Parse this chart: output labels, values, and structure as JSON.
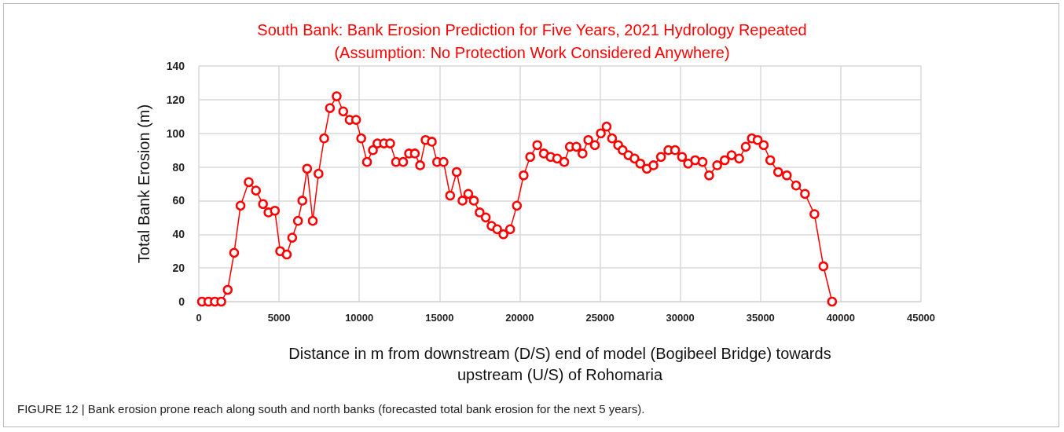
{
  "chart_data": {
    "type": "line",
    "title": "South Bank: Bank Erosion Prediction for Five Years, 2021 Hydrology Repeated\n(Assumption: No Protection Work Considered Anywhere)",
    "xlabel": "Distance in m from downstream (D/S) end of model (Bogibeel Bridge) towards\nupstream (U/S) of Rohomaria",
    "ylabel": "Total Bank Erosion (m)",
    "annotations": [
      "FIGURE 12 | Bank erosion prone reach along south and north banks (forecasted total bank erosion for the next 5 years)."
    ],
    "series": [
      {
        "color": "#ff0000",
        "x": [
          200,
          600,
          1000,
          1400,
          1800,
          2200,
          2600,
          3110,
          3560,
          4000,
          4340,
          4740,
          5070,
          5480,
          5820,
          6180,
          6450,
          6750,
          7100,
          7460,
          7810,
          8170,
          8590,
          9000,
          9400,
          9800,
          10120,
          10480,
          10850,
          11130,
          11540,
          11920,
          12290,
          12730,
          13100,
          13460,
          13790,
          14130,
          14520,
          14850,
          15250,
          15660,
          16070,
          16430,
          16790,
          17140,
          17500,
          17880,
          18240,
          18590,
          18980,
          19400,
          19820,
          20240,
          20650,
          21090,
          21500,
          21920,
          22330,
          22770,
          23120,
          23530,
          23910,
          24270,
          24680,
          25050,
          25410,
          25750,
          26130,
          26410,
          26770,
          27150,
          27510,
          27920,
          28330,
          28800,
          29260,
          29680,
          30110,
          30490,
          30930,
          31390,
          31800,
          32300,
          32770,
          33200,
          33670,
          34080,
          34460,
          34820,
          35200,
          35610,
          36100,
          36640,
          37220,
          37770,
          38360,
          38920,
          39460
        ],
        "values": [
          0,
          0,
          0,
          0,
          7,
          29,
          57,
          71,
          66,
          58,
          53,
          54,
          30,
          28,
          38,
          48,
          60,
          79,
          48,
          76,
          97,
          115,
          122,
          113,
          108,
          108,
          97,
          83,
          90,
          94,
          94,
          94,
          83,
          83,
          88,
          88,
          81,
          96,
          95,
          83,
          83,
          63,
          77,
          60,
          64,
          60,
          53,
          50,
          45,
          43,
          40,
          43,
          57,
          75,
          86,
          93,
          88,
          86,
          85,
          83,
          92,
          92,
          88,
          96,
          93,
          100,
          104,
          97,
          93,
          90,
          87,
          85,
          82,
          79,
          81,
          86,
          90,
          90,
          86,
          82,
          84,
          83,
          75,
          81,
          84,
          87,
          85,
          92,
          97,
          96,
          93,
          84,
          77,
          75,
          69,
          64,
          52,
          21,
          0
        ]
      }
    ],
    "xlim": [
      0,
      45000
    ],
    "xticks": [
      0,
      5000,
      10000,
      15000,
      20000,
      25000,
      30000,
      35000,
      40000,
      45000
    ],
    "ylim": [
      0,
      140
    ],
    "yticks": [
      0,
      20,
      40,
      60,
      80,
      100,
      120,
      140
    ],
    "grid": true,
    "marker": "circle",
    "line_style": "solid"
  }
}
